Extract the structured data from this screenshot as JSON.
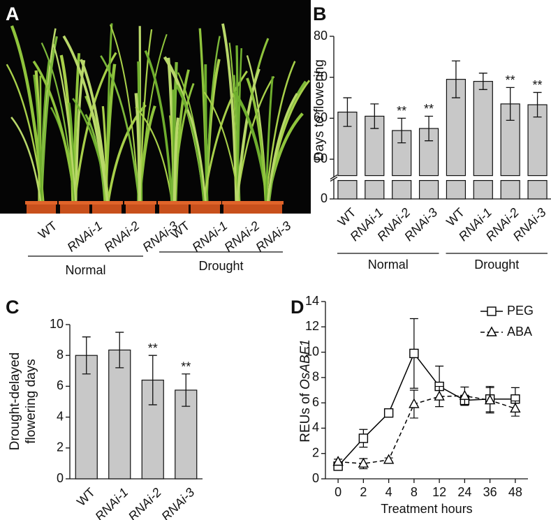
{
  "panel_a": {
    "panel": "A",
    "labels": [
      "WT",
      "RNAi-1",
      "RNAi-2",
      "RNAi-3",
      "WT",
      "RNAi-1",
      "RNAi-2",
      "RNAi-3"
    ],
    "label_italic": [
      false,
      true,
      true,
      true,
      false,
      true,
      true,
      true
    ],
    "groups": [
      "Normal",
      "Drought"
    ]
  },
  "chart_data": [
    {
      "type": "bar",
      "panel": "B",
      "ylabel": "Days to flowering",
      "categories": [
        "WT",
        "RNAi-1",
        "RNAi-2",
        "RNAi-3",
        "WT",
        "RNAi-1",
        "RNAi-2",
        "RNAi-3"
      ],
      "category_italic": [
        false,
        true,
        true,
        true,
        false,
        true,
        true,
        true
      ],
      "groups": [
        "Normal",
        "Drought"
      ],
      "values": [
        61.5,
        60.5,
        57,
        57.5,
        69.5,
        69,
        63.5,
        63.3
      ],
      "errors": [
        3.5,
        3,
        3,
        3,
        4.5,
        2,
        4,
        3
      ],
      "annotations": [
        null,
        null,
        "**",
        "**",
        null,
        null,
        "**",
        "**"
      ],
      "color": "#c8c8c8",
      "ylim": [
        0,
        80
      ],
      "y_break": [
        4.5,
        46
      ],
      "yticks": [
        0,
        50,
        60,
        70,
        80
      ]
    },
    {
      "type": "bar",
      "panel": "C",
      "ylabel": [
        "Drought-delayed",
        "flowering days"
      ],
      "categories": [
        "WT",
        "RNAi-1",
        "RNAi-2",
        "RNAi-3"
      ],
      "category_italic": [
        false,
        true,
        true,
        true
      ],
      "values": [
        8,
        8.35,
        6.4,
        5.75
      ],
      "errors": [
        1.2,
        1.15,
        1.6,
        1.05
      ],
      "annotations": [
        null,
        null,
        "**",
        "**"
      ],
      "color": "#c8c8c8",
      "ylim": [
        0,
        10
      ],
      "yticks": [
        0,
        2,
        4,
        6,
        8,
        10
      ]
    },
    {
      "type": "line",
      "panel": "D",
      "ylabel": [
        "REUs of",
        "OsABF1"
      ],
      "xlabel": "Treatment hours",
      "categories": [
        "0",
        "2",
        "4",
        "8",
        "12",
        "24",
        "36",
        "48"
      ],
      "series": [
        {
          "name": "PEG",
          "color": "#000000",
          "marker": "square",
          "dashed": false,
          "values": [
            1.0,
            3.2,
            5.2,
            9.9,
            7.3,
            6.2,
            6.3,
            6.3
          ],
          "errors": [
            0.2,
            0.7,
            0.15,
            2.75,
            1.6,
            0.4,
            1.0,
            0.9
          ]
        },
        {
          "name": "ABA",
          "color": "#000000",
          "marker": "triangle",
          "dashed": true,
          "values": [
            1.35,
            1.2,
            1.5,
            5.9,
            6.5,
            6.55,
            6.2,
            5.55
          ],
          "errors": [
            0.2,
            0.4,
            0.15,
            1.1,
            0.8,
            0.7,
            1.0,
            0.6
          ]
        }
      ],
      "ylim": [
        0,
        14
      ],
      "yticks": [
        0,
        2,
        4,
        6,
        8,
        10,
        12,
        14
      ],
      "legend": "upper right"
    }
  ]
}
